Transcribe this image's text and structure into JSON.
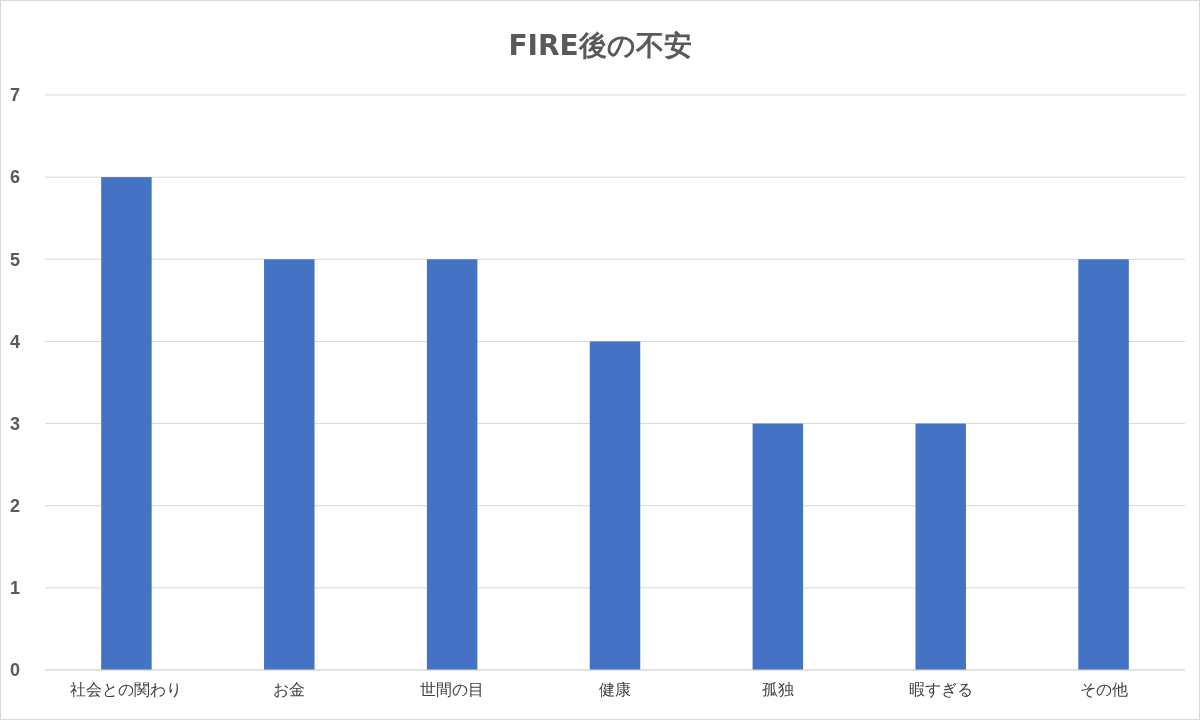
{
  "chart_data": {
    "type": "bar",
    "title": "FIRE後の不安",
    "categories": [
      "社会との関わり",
      "お金",
      "世間の目",
      "健康",
      "孤独",
      "暇すぎる",
      "その他"
    ],
    "values": [
      6,
      5,
      5,
      4,
      3,
      3,
      5
    ],
    "color": "#4472c4",
    "ylim": [
      0,
      7
    ],
    "yticks": [
      0,
      1,
      2,
      3,
      4,
      5,
      6,
      7
    ],
    "grid": "y"
  }
}
